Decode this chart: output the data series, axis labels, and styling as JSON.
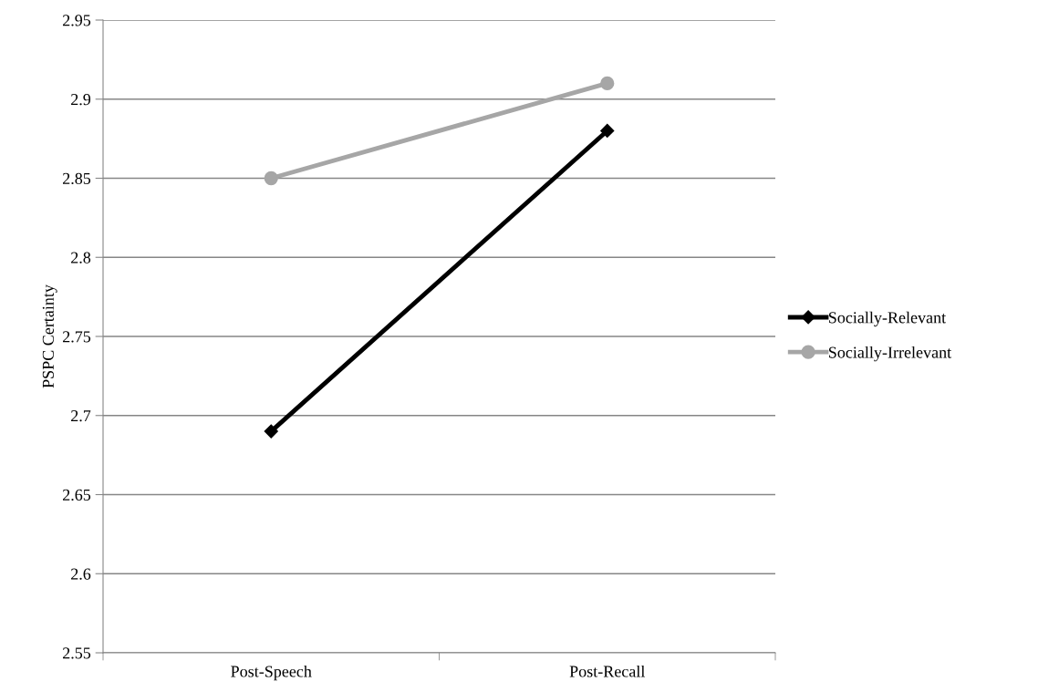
{
  "chart_data": {
    "type": "line",
    "ylabel": "PSPC Certainty",
    "categories": [
      "Post-Speech",
      "Post-Recall"
    ],
    "series": [
      {
        "name": "Socially-Relevant",
        "color": "#000000",
        "values": [
          2.69,
          2.88
        ],
        "marker": "diamond"
      },
      {
        "name": "Socially-Irrelevant",
        "color": "#a6a6a6",
        "values": [
          2.85,
          2.91
        ],
        "marker": "circle"
      }
    ],
    "ylim": [
      2.55,
      2.95
    ],
    "yticks": [
      2.55,
      2.6,
      2.65,
      2.7,
      2.75,
      2.8,
      2.85,
      2.9,
      2.95
    ],
    "grid": "y",
    "legend": "right",
    "line_style": "solid"
  }
}
